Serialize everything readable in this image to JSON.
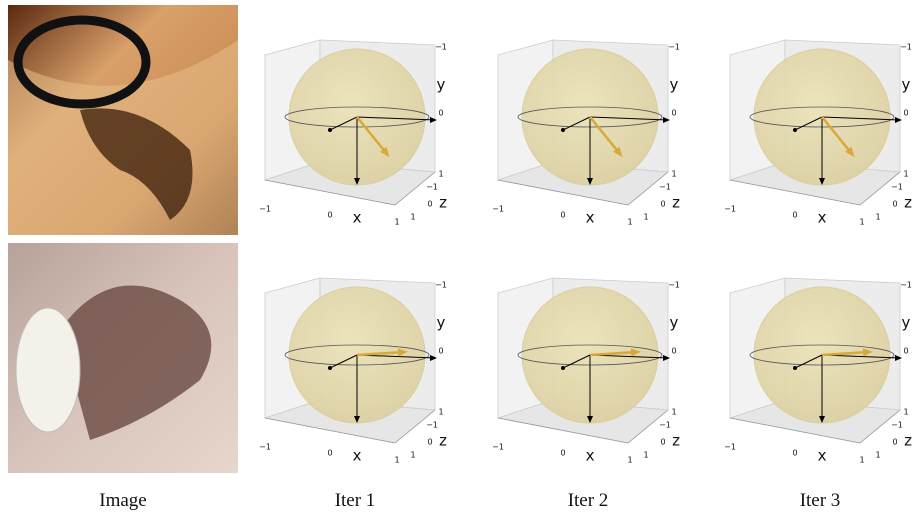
{
  "columns": [
    "Image",
    "Iter 1",
    "Iter 2",
    "Iter 3"
  ],
  "axes": {
    "x_label": "x",
    "y_label": "y",
    "z_label": "z",
    "x_ticks": [
      "−1",
      "0",
      "1"
    ],
    "y_ticks": [
      "−1",
      "0",
      "1"
    ],
    "z_ticks": [
      "−1",
      "0",
      "1"
    ]
  }
}
